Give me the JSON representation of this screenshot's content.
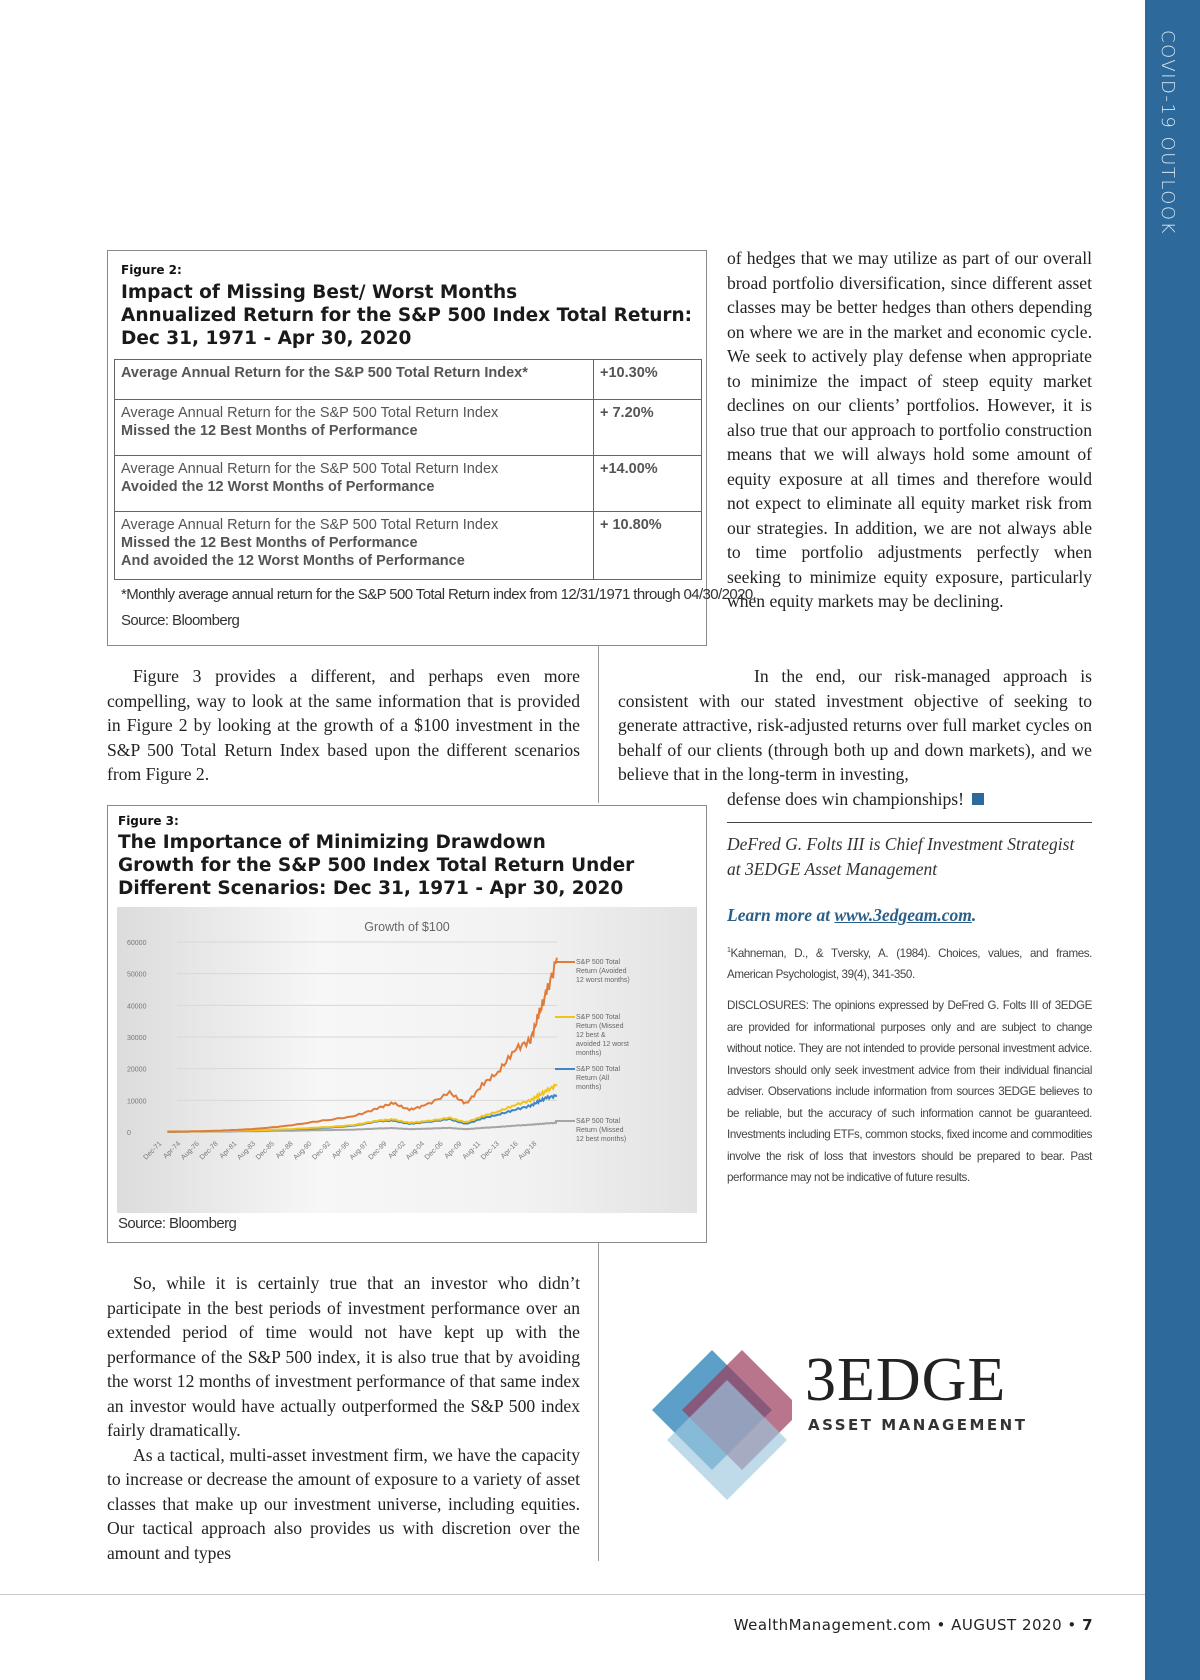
{
  "sidebar": {
    "section_title": "COVID-19 OUTLOOK",
    "color": "#2d6a9b"
  },
  "figure2": {
    "label": "Figure 2:",
    "title_lines": [
      "Impact of Missing Best/ Worst Months",
      "Annualized Return for the S&P 500 Index Total Return:",
      "Dec 31, 1971 - Apr 30, 2020"
    ],
    "rows": [
      {
        "lines": [
          "Average Annual Return for the S&P 500 Total Return Index*"
        ],
        "bold_lines": [],
        "value": "+10.30%"
      },
      {
        "lines": [
          "Average Annual Return for the S&P 500 Total Return Index"
        ],
        "bold_lines": [
          "Missed the 12 Best Months of Performance"
        ],
        "value": "+ 7.20%"
      },
      {
        "lines": [
          "Average Annual Return for the S&P 500 Total Return Index"
        ],
        "bold_lines": [
          "Avoided the 12 Worst Months of Performance"
        ],
        "value": "+14.00%"
      },
      {
        "lines": [
          "Average Annual Return for the S&P 500 Total Return Index"
        ],
        "bold_lines": [
          "Missed the 12 Best Months of Performance",
          "And avoided the 12 Worst Months of Performance"
        ],
        "value": "+ 10.80%"
      }
    ],
    "footnote": "*Monthly average annual return for the S&P 500 Total Return index from 12/31/1971 through 04/30/2020.",
    "source": "Source: Bloomberg"
  },
  "figure3": {
    "label": "Figure 3:",
    "title_lines": [
      "The Importance of Minimizing Drawdown",
      "Growth for the S&P 500 Index Total Return Under",
      "Different Scenarios: Dec 31, 1971 - Apr 30, 2020"
    ],
    "source": "Source: Bloomberg"
  },
  "chart_data": {
    "type": "line",
    "title": "Growth of $100",
    "xlabel": "",
    "ylabel": "",
    "ylim": [
      0,
      60000
    ],
    "yticks": [
      "0",
      "10000",
      "20000",
      "30000",
      "40000",
      "50000",
      "60000"
    ],
    "xticks": [
      "Dec-71",
      "Apr-74",
      "Aug-76",
      "Dec-78",
      "Apr-81",
      "Aug-83",
      "Dec-85",
      "Apr-88",
      "Aug-90",
      "Dec-92",
      "Apr-95",
      "Aug-97",
      "Dec-99",
      "Apr-02",
      "Aug-04",
      "Dec-06",
      "Apr-09",
      "Aug-11",
      "Dec-13",
      "Apr-16",
      "Aug-18"
    ],
    "grid": true,
    "legend": "right",
    "x": [
      1972,
      1976,
      1980,
      1985,
      1990,
      1995,
      1998,
      2000,
      2002,
      2004,
      2007,
      2009,
      2011,
      2013,
      2015,
      2017,
      2018,
      2019,
      2020.3
    ],
    "series": [
      {
        "name": "S&P 500 Total Return (Avoided 12 worst months)",
        "color": "#e07b39",
        "values": [
          100,
          250,
          600,
          1500,
          3200,
          5000,
          7500,
          9200,
          7000,
          8500,
          12500,
          9000,
          15000,
          19000,
          26000,
          29000,
          37000,
          44000,
          55000
        ]
      },
      {
        "name": "S&P 500 Total Return (Missed 12 best & avoided 12 worst months)",
        "color": "#f2c318",
        "values": [
          100,
          180,
          330,
          700,
          1300,
          2200,
          3600,
          4000,
          2900,
          3400,
          4500,
          3100,
          5000,
          6500,
          8500,
          10000,
          11500,
          13000,
          15000
        ]
      },
      {
        "name": "S&P 500 Total Return (All months)",
        "color": "#3f86c6",
        "values": [
          100,
          160,
          280,
          650,
          1100,
          2000,
          3400,
          3600,
          2600,
          3100,
          4100,
          2600,
          4300,
          5500,
          7000,
          8300,
          9600,
          10800,
          11500
        ]
      },
      {
        "name": "S&P 500 Total Return (Missed 12 best months)",
        "color": "#a5a5a5",
        "values": [
          100,
          120,
          180,
          330,
          520,
          750,
          1100,
          1250,
          900,
          1050,
          1300,
          900,
          1300,
          1600,
          2000,
          2300,
          2500,
          2700,
          2900
        ]
      }
    ]
  },
  "article": {
    "right_top": "of hedges that we may utilize as part of our overall broad portfolio diversification, since different asset classes may be better hedges than others depending on where we are in the market and economic cycle. We seek to actively play defense when appropriate to minimize the impact of steep equity market declines on our clients’ portfolios. However, it is also true that our approach to portfolio construction means that we will always hold some amount of equity exposure at all times and therefore would not expect to eliminate all equity market risk from our strategies. In addition, we are not always able to time portfolio adjustments perfectly when seeking to minimize equity exposure, particularly when equity markets may be declining.",
    "left_mid": "Figure 3 provides a different, and perhaps even more compelling, way to look at the same information that is provided in Figure 2 by looking at the growth of a $100 investment in the S&P 500 Total Return Index based upon the different scenarios from Figure 2.",
    "right_mid": "In the end, our risk-managed approach is consistent with our stated investment objective of seeking to generate attractive, risk-adjusted returns over full market cycles on behalf of our clients (through both up and down markets), and we believe that in the long-term in investing,",
    "right_mid_last": "defense does win championships!",
    "left_bottom_1": "So, while it is certainly true that an investor who didn’t participate in the best periods of investment performance over an extended period of time would not have kept up with the performance of the S&P 500 index, it is also true that by avoiding the worst 12 months of investment performance of that same index an investor would have actually outperformed the S&P 500 index fairly dramatically.",
    "left_bottom_2": "As a tactical, multi-asset investment firm, we have the capacity to increase or decrease the amount of exposure to a variety of asset classes that make up our investment universe, including equities. Our tactical approach also provides us with discretion over the amount and types"
  },
  "author": {
    "bio_lines": [
      "DeFred G. Folts III is Chief Investment Strategist",
      "at 3EDGE Asset Management"
    ],
    "learn_more": "Learn more at ",
    "link": "www.3edgeam.com",
    "link_suffix": ".",
    "accent": "#2a5f8a"
  },
  "footnote": {
    "marker": "1",
    "text": "Kahneman, D., & Tversky, A. (1984). Choices, values, and frames. American Psychologist, 39(4), 341-350."
  },
  "disclosures": "DISCLOSURES: The opinions expressed by DeFred G. Folts III of 3EDGE are provided for informational purposes only and are subject to change without notice. They are not intended to provide personal investment advice. Investors should only seek investment advice from their individual financial adviser. Observations include information from sources 3EDGE believes to be reliable, but the accuracy of such information cannot be guaranteed. Investments including ETFs, common stocks, fixed income and commodities involve the risk of loss that investors should be prepared to bear. Past performance may not be indicative of future results.",
  "logo": {
    "name": "3EDGE",
    "tagline": "ASSET MANAGEMENT"
  },
  "footer": {
    "site": "WealthManagement.com",
    "issue": "AUGUST 2020",
    "page": "7",
    "sep": "•"
  }
}
